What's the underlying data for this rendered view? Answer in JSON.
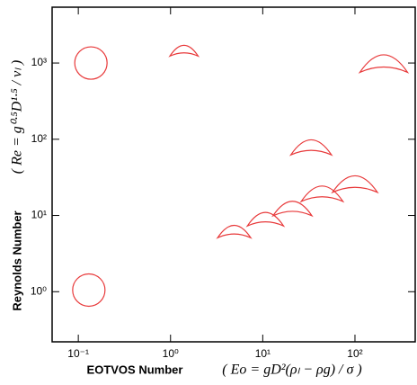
{
  "chart_data": {
    "type": "scatter",
    "x_label": "EOTVOS Number",
    "x_label_formula": "( Eo = gD²(ρₗ − ρg) / σ )",
    "y_label": "Reynolds Number",
    "y_label_formula": "( Re = g⁰·⁵D¹·⁵ / νₗ )",
    "log_x": true,
    "log_y": true,
    "color": "#e8393a",
    "x": [
      0.137,
      0.13,
      1.4,
      205,
      33.5,
      4.9,
      10.7,
      21,
      44,
      100
    ],
    "values": [
      1000,
      1.05,
      1420,
      950,
      76,
      6,
      8.7,
      12,
      18.7,
      25
    ],
    "xlim": [
      0.052,
      450
    ],
    "ylim": [
      0.22,
      5400
    ],
    "xticks": [
      {
        "value": 0.1,
        "label": "10⁻¹"
      },
      {
        "value": 1,
        "label": "10⁰"
      },
      {
        "value": 10,
        "label": "10¹"
      },
      {
        "value": 100,
        "label": "10²"
      }
    ],
    "yticks": [
      {
        "value": 1,
        "label": "10⁰"
      },
      {
        "value": 10,
        "label": "10¹"
      },
      {
        "value": 100,
        "label": "10²"
      },
      {
        "value": 1000,
        "label": "10³"
      }
    ]
  }
}
